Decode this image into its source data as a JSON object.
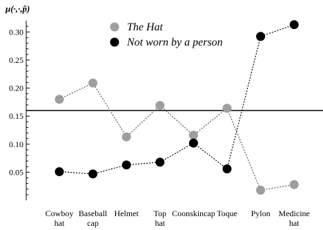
{
  "chart_data": {
    "type": "line",
    "ylabel": "μ(·,·,p̂)",
    "categories": [
      [
        "Cowboy",
        "hat"
      ],
      [
        "Baseball",
        "cap"
      ],
      [
        "Helmet"
      ],
      [
        "Top",
        "hat"
      ],
      [
        "Coonskincap"
      ],
      [
        "Toque"
      ],
      [
        "Pylon"
      ],
      [
        "Medicine",
        "hat"
      ]
    ],
    "ylim": [
      0.0,
      0.32
    ],
    "yticks": [
      "0.05",
      "0.10",
      "0.15",
      "0.20",
      "0.25",
      "0.30"
    ],
    "yticks_values": [
      0.05,
      0.1,
      0.15,
      0.2,
      0.25,
      0.3
    ],
    "reference_line": 0.16,
    "series": [
      {
        "name": "The Hat",
        "values": [
          0.18,
          0.209,
          0.113,
          0.169,
          0.116,
          0.164,
          0.018,
          0.028
        ],
        "color": "#9e9e9e"
      },
      {
        "name": "Not worn by a person",
        "values": [
          0.051,
          0.047,
          0.063,
          0.068,
          0.102,
          0.056,
          0.292,
          0.313
        ],
        "color": "#000000"
      }
    ],
    "legend": "top-center",
    "grid": false
  }
}
